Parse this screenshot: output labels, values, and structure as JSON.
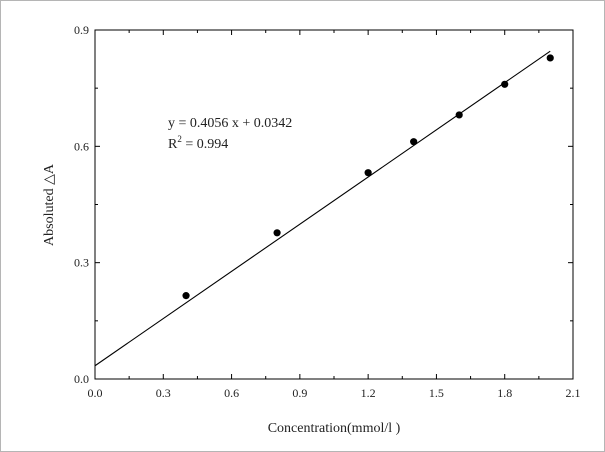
{
  "chart_data": {
    "type": "scatter",
    "xlabel": "Concentration(mmol/l )",
    "ylabel": "Absoluted △A",
    "xlim": [
      0.0,
      2.1
    ],
    "ylim": [
      0.0,
      0.9
    ],
    "x_ticks": [
      0.0,
      0.3,
      0.6,
      0.9,
      1.2,
      1.5,
      1.8,
      2.1
    ],
    "x_tick_labels": [
      "0.0",
      "0.3",
      "0.6",
      "0.9",
      "1.2",
      "1.5",
      "1.8",
      "2.1"
    ],
    "y_ticks": [
      0.0,
      0.3,
      0.6,
      0.9
    ],
    "y_tick_labels": [
      "0.0",
      "0.3",
      "0.6",
      "0.9"
    ],
    "points": [
      {
        "x": 0.4,
        "y": 0.215
      },
      {
        "x": 0.8,
        "y": 0.377
      },
      {
        "x": 1.2,
        "y": 0.532
      },
      {
        "x": 1.4,
        "y": 0.612
      },
      {
        "x": 1.6,
        "y": 0.681
      },
      {
        "x": 1.8,
        "y": 0.76
      },
      {
        "x": 2.0,
        "y": 0.828
      }
    ],
    "fit_line": {
      "slope": 0.4056,
      "intercept": 0.0342,
      "x_range": [
        0.0,
        2.0
      ]
    },
    "annotation": {
      "equation": "y = 0.4056 x + 0.0342",
      "r2_prefix": "R",
      "r2_sup": "2",
      "r2_value": " = 0.994"
    },
    "grid": false,
    "legend": "none"
  }
}
